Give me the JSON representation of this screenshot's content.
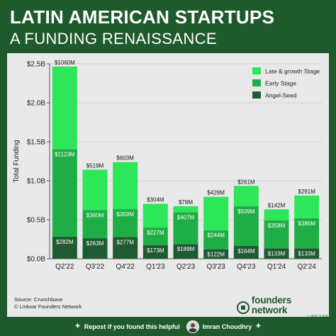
{
  "header": {
    "title": "LATIN AMERICAN STARTUPS",
    "subtitle": "A FUNDING RENAISSANCE"
  },
  "source": {
    "line1": "Source: Crunchbase",
    "line2": "© Linkxar Founders Network"
  },
  "logo": {
    "main": "founders network",
    "sub": "LINKXAR"
  },
  "footer": {
    "cta": "Repost if you found this helpful",
    "author": "Imran Choudhry"
  },
  "colors": {
    "background": "#1e5a2c",
    "panel": "#e9e9e9",
    "late_growth": "#2ee65a",
    "early": "#1fae45",
    "angel_seed": "#1f5a32"
  },
  "chart_data": {
    "type": "bar",
    "stacked": true,
    "categories": [
      "Q2'22",
      "Q3'22",
      "Q4'22",
      "Q1'23",
      "Q2'23",
      "Q3'23",
      "Q4'23",
      "Q1'24",
      "Q2'24"
    ],
    "series": [
      {
        "name": "Angel-Seed",
        "values": [
          282,
          263,
          277,
          173,
          189,
          122,
          164,
          133,
          133
        ],
        "labels": [
          "$282M",
          "$263M",
          "$277M",
          "$173M",
          "$189M",
          "$122M",
          "$164M",
          "$133M",
          "$133M"
        ]
      },
      {
        "name": "Early Stage",
        "values": [
          1123,
          360,
          359,
          227,
          407,
          244,
          509,
          358,
          386
        ],
        "labels": [
          "$1123M",
          "$360M",
          "$359M",
          "$227M",
          "$407M",
          "$244M",
          "$509M",
          "$358M",
          "$386M"
        ]
      },
      {
        "name": "Late & growth Stage",
        "values": [
          1060,
          519,
          603,
          304,
          78,
          428,
          261,
          142,
          291
        ],
        "labels": [
          "$1060M",
          "$519M",
          "$603M",
          "$304M",
          "$78M",
          "$428M",
          "$261M",
          "$142M",
          "$291M"
        ]
      }
    ],
    "legend_order": [
      "Late & growth Stage",
      "Early Stage",
      "Angel-Seed"
    ],
    "legend_position": "top-right",
    "ylabel": "Total Funding",
    "yticks": [
      "$0.0B",
      "$0.5B",
      "$1.0B",
      "$1.5B",
      "$2.0B",
      "$2.5B"
    ],
    "ytick_values": [
      0,
      500,
      1000,
      1500,
      2000,
      2500
    ],
    "ylim": [
      0,
      2500
    ],
    "grid": true
  }
}
